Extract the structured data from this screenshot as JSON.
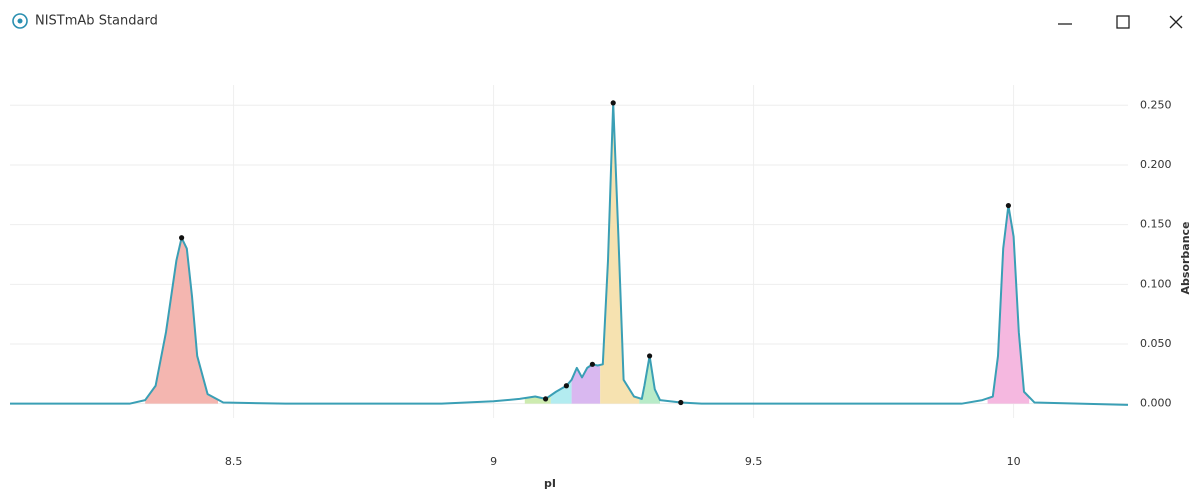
{
  "window": {
    "title": "NISTmAb Standard"
  },
  "chart_data": {
    "type": "line",
    "xlabel": "pI",
    "ylabel": "Absorbance",
    "xlim": [
      8.07,
      10.22
    ],
    "ylim": [
      -0.012,
      0.267
    ],
    "xticks": [
      8.5,
      9,
      9.5,
      10
    ],
    "yticks": [
      {
        "value": 0,
        "label": "0.000"
      },
      {
        "value": 0.05,
        "label": "0.050"
      },
      {
        "value": 0.1,
        "label": "0.100"
      },
      {
        "value": 0.15,
        "label": "0.150"
      },
      {
        "value": 0.2,
        "label": "0.200"
      },
      {
        "value": 0.25,
        "label": "0.250"
      }
    ],
    "grid": true,
    "series": [
      {
        "color": "#3a9fb5",
        "x": [
          8.07,
          8.3,
          8.33,
          8.35,
          8.37,
          8.39,
          8.4,
          8.41,
          8.42,
          8.43,
          8.45,
          8.48,
          8.6,
          8.9,
          9.0,
          9.05,
          9.08,
          9.1,
          9.12,
          9.14,
          9.15,
          9.16,
          9.17,
          9.18,
          9.19,
          9.2,
          9.21,
          9.22,
          9.23,
          9.24,
          9.25,
          9.27,
          9.285,
          9.29,
          9.3,
          9.31,
          9.32,
          9.36,
          9.4,
          9.9,
          9.94,
          9.96,
          9.97,
          9.98,
          9.99,
          10.0,
          10.01,
          10.02,
          10.04,
          10.22
        ],
        "values": [
          0,
          0,
          0.003,
          0.015,
          0.06,
          0.12,
          0.139,
          0.13,
          0.09,
          0.04,
          0.008,
          0.001,
          0,
          0,
          0.002,
          0.004,
          0.006,
          0.004,
          0.01,
          0.015,
          0.02,
          0.03,
          0.022,
          0.03,
          0.033,
          0.032,
          0.033,
          0.12,
          0.252,
          0.14,
          0.02,
          0.006,
          0.004,
          0.015,
          0.04,
          0.012,
          0.003,
          0.001,
          0,
          0,
          0.003,
          0.006,
          0.04,
          0.13,
          0.166,
          0.14,
          0.06,
          0.01,
          0.001,
          -0.001
        ]
      }
    ],
    "peaks": {
      "x": [
        8.4,
        9.1,
        9.14,
        9.19,
        9.23,
        9.3,
        9.36,
        9.99
      ],
      "values": [
        0.139,
        0.004,
        0.015,
        0.033,
        0.252,
        0.04,
        0.001,
        0.166
      ],
      "color": "#111111"
    },
    "regions": [
      {
        "start": 8.33,
        "end": 8.47,
        "color": "#f4b6b0"
      },
      {
        "start": 9.06,
        "end": 9.11,
        "color": "#cdebb0"
      },
      {
        "start": 9.11,
        "end": 9.15,
        "color": "#b3ecf0"
      },
      {
        "start": 9.15,
        "end": 9.205,
        "color": "#d9b8f0"
      },
      {
        "start": 9.205,
        "end": 9.28,
        "color": "#f6e2b0"
      },
      {
        "start": 9.28,
        "end": 9.32,
        "color": "#b8ebc8"
      },
      {
        "start": 9.95,
        "end": 10.03,
        "color": "#f5b8e0"
      }
    ]
  }
}
